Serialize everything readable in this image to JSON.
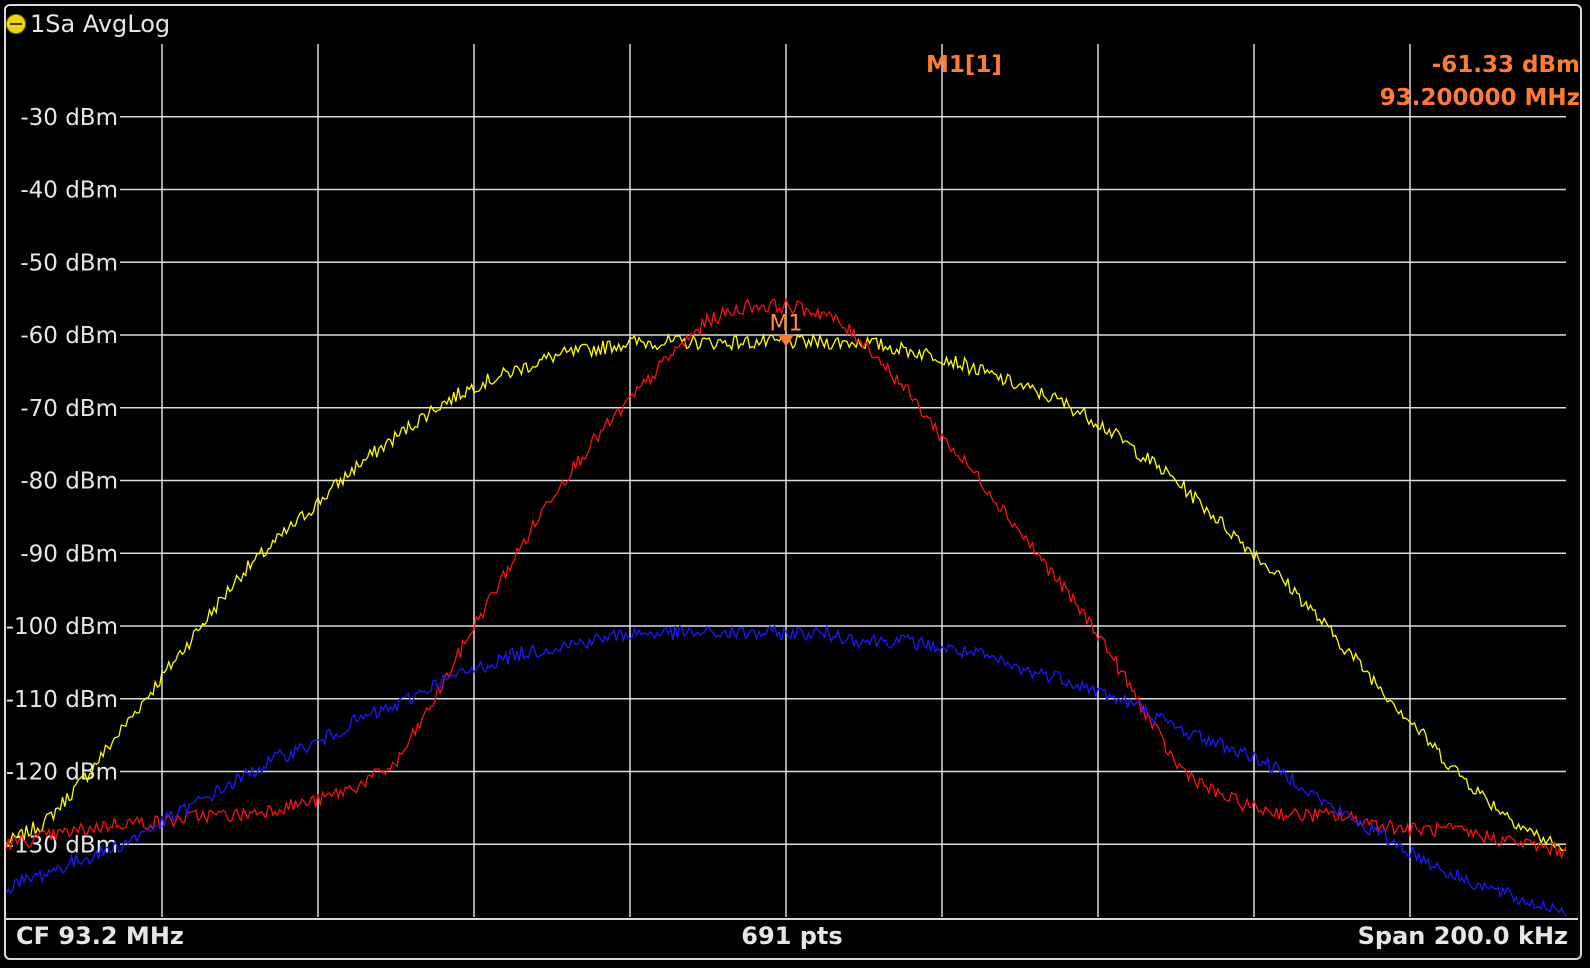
{
  "window": {
    "title": "1Sa AvgLog"
  },
  "footer": {
    "center_freq": "CF 93.2 MHz",
    "points": "691 pts",
    "span": "Span 200.0 kHz"
  },
  "marker": {
    "label": "M1[1]",
    "value": "-61.33 dBm",
    "frequency": "93.200000 MHz",
    "plot_label": "M1",
    "x_khz": 0,
    "level_dbm": -61.33,
    "color": "#ff7a33"
  },
  "chart_data": {
    "type": "line",
    "title": "",
    "xlabel": "",
    "ylabel": "",
    "x_unit": "kHz offset from CF",
    "xlim": [
      -100,
      100
    ],
    "ylim": [
      -140,
      -20
    ],
    "grid": true,
    "y_ticks": [
      "-30 dBm",
      "-40 dBm",
      "-50 dBm",
      "-60 dBm",
      "-70 dBm",
      "-80 dBm",
      "-90 dBm",
      "-100 dBm",
      "-110 dBm",
      "-120 dBm",
      "-130 dBm"
    ],
    "y_tick_values": [
      -30,
      -40,
      -50,
      -60,
      -70,
      -80,
      -90,
      -100,
      -110,
      -120,
      -130
    ],
    "x": [
      -100,
      -95,
      -90,
      -85,
      -80,
      -75,
      -70,
      -65,
      -60,
      -55,
      -50,
      -45,
      -40,
      -35,
      -30,
      -25,
      -20,
      -15,
      -10,
      -5,
      0,
      5,
      10,
      15,
      20,
      25,
      30,
      35,
      40,
      45,
      50,
      55,
      60,
      65,
      70,
      75,
      80,
      85,
      90,
      95,
      100
    ],
    "series": [
      {
        "color": "#ffff00",
        "values": [
          -130,
          -127,
          -121,
          -114,
          -107,
          -100,
          -93,
          -88,
          -83,
          -78,
          -74,
          -70,
          -67,
          -65,
          -63,
          -62,
          -61,
          -61,
          -61,
          -61,
          -61,
          -61,
          -61,
          -62,
          -63,
          -65,
          -67,
          -69,
          -72,
          -76,
          -80,
          -85,
          -90,
          -95,
          -101,
          -107,
          -113,
          -119,
          -124,
          -128,
          -131
        ]
      },
      {
        "color": "#ff1010",
        "values": [
          -130,
          -129,
          -128,
          -127,
          -127,
          -126,
          -126,
          -125,
          -124,
          -122,
          -119,
          -110,
          -100,
          -91,
          -82,
          -75,
          -69,
          -63,
          -58,
          -56,
          -56,
          -57,
          -61,
          -67,
          -74,
          -80,
          -87,
          -94,
          -101,
          -110,
          -119,
          -123,
          -125,
          -126,
          -126,
          -127,
          -128,
          -128,
          -129,
          -130,
          -131
        ]
      },
      {
        "color": "#1a1aff",
        "values": [
          -136,
          -134,
          -132,
          -130,
          -127,
          -124,
          -121,
          -118,
          -116,
          -113,
          -111,
          -108,
          -106,
          -104,
          -103,
          -102,
          -101,
          -101,
          -101,
          -101,
          -101,
          -101,
          -102,
          -102,
          -103,
          -104,
          -106,
          -107,
          -109,
          -111,
          -114,
          -116,
          -118,
          -121,
          -125,
          -128,
          -131,
          -134,
          -136,
          -138,
          -139
        ]
      }
    ]
  }
}
